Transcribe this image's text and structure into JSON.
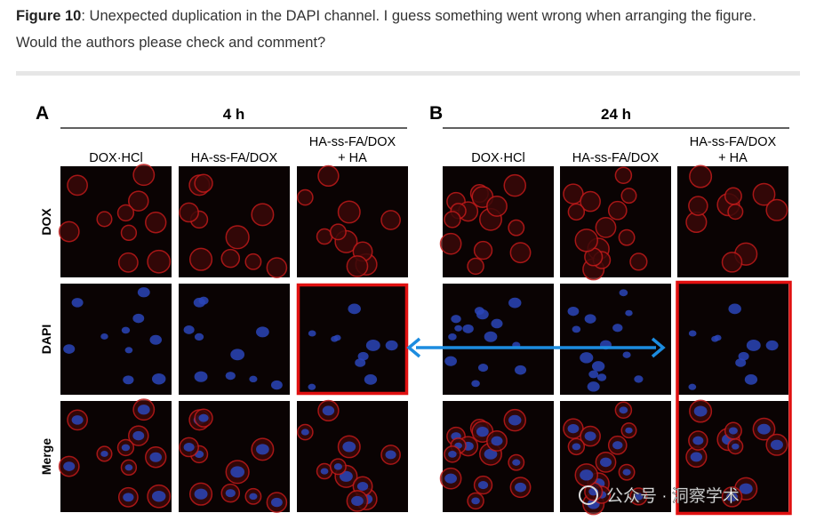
{
  "caption": {
    "label": "Figure 10",
    "text": ": Unexpected duplication in the DAPI channel. I guess something went wrong when arranging the figure. Would the authors please check and comment?"
  },
  "panels": [
    {
      "label": "A",
      "time": "4 h",
      "columns": [
        [
          "DOX·HCl"
        ],
        [
          "HA-ss-FA/DOX"
        ],
        [
          "HA-ss-FA/DOX",
          "+ HA"
        ]
      ]
    },
    {
      "label": "B",
      "time": "24 h",
      "columns": [
        [
          "DOX·HCl"
        ],
        [
          "HA-ss-FA/DOX"
        ],
        [
          "HA-ss-FA/DOX",
          "+ HA"
        ]
      ]
    }
  ],
  "rows": [
    "DOX",
    "DAPI",
    "Merge"
  ],
  "watermark": "公众号 · 洞察学术"
}
